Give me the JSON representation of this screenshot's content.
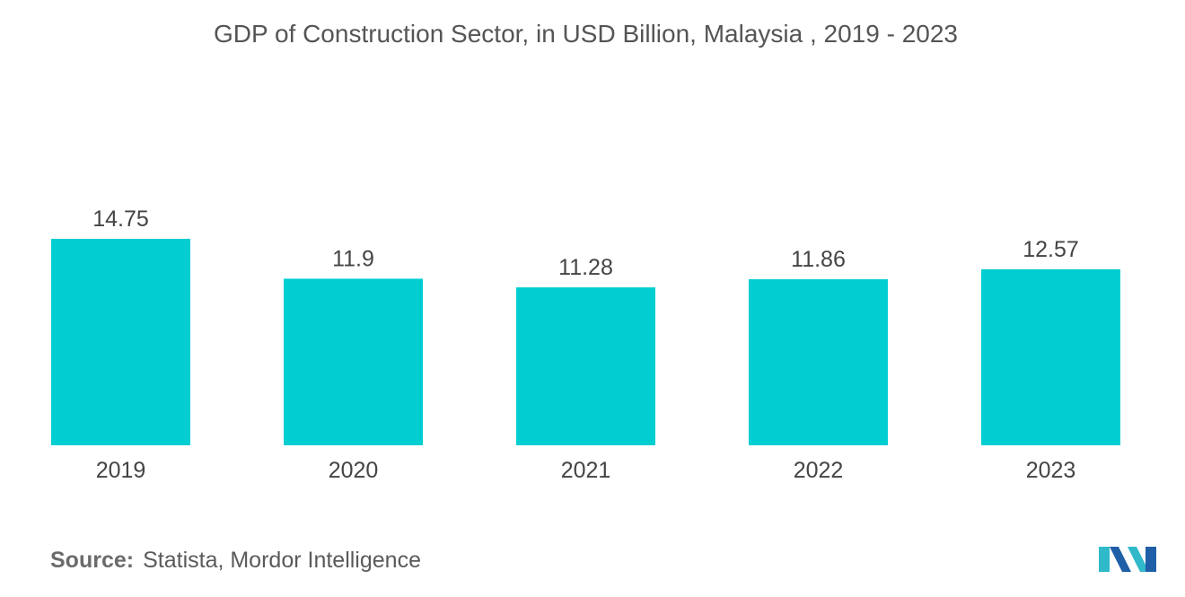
{
  "chart_data": {
    "type": "bar",
    "title": "GDP of Construction Sector, in USD Billion, Malaysia , 2019 - 2023",
    "categories": [
      "2019",
      "2020",
      "2021",
      "2022",
      "2023"
    ],
    "values": [
      14.75,
      11.9,
      11.28,
      11.86,
      12.57
    ],
    "value_labels": [
      "14.75",
      "11.9",
      "11.28",
      "11.86",
      "12.57"
    ],
    "xlabel": "",
    "ylabel": "",
    "ylim": [
      0,
      14.75
    ],
    "grid": false,
    "legend": "none",
    "bar_color": "#00CED1"
  },
  "source": {
    "label": "Source:",
    "text": "Statista, Mordor Intelligence"
  },
  "logo": {
    "icon": "mordor-intelligence-logo-icon",
    "colors": [
      "#1f5fa8",
      "#2fb9c9"
    ]
  }
}
